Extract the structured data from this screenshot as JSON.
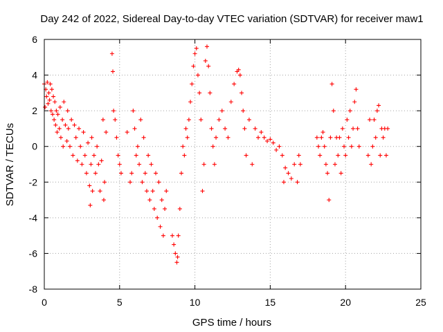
{
  "chart_data": {
    "type": "scatter",
    "title": "Day 242 of 2022, Sidereal Day-to-day VTEC variation (SDTVAR) for receiver maw1",
    "xlabel": "GPS time / hours",
    "ylabel": "SDTVAR / TECUs",
    "xlim": [
      0,
      25
    ],
    "ylim": [
      -8,
      6
    ],
    "xticks": [
      0,
      5,
      10,
      15,
      20,
      25
    ],
    "yticks": [
      -8,
      -6,
      -4,
      -2,
      0,
      2,
      4,
      6
    ],
    "xtick_labels": [
      "0",
      "5",
      "10",
      "15",
      "20",
      "25"
    ],
    "ytick_labels": [
      "-8",
      "-6",
      "-4",
      "-2",
      "0",
      "2",
      "4",
      "6"
    ],
    "grid": true,
    "marker": "+",
    "color": "#ff0000",
    "series": [
      {
        "name": "SDTVAR",
        "points": [
          [
            0.0,
            3.5
          ],
          [
            0.05,
            2.2
          ],
          [
            0.1,
            3.2
          ],
          [
            0.15,
            2.8
          ],
          [
            0.2,
            3.6
          ],
          [
            0.25,
            2.4
          ],
          [
            0.3,
            3.0
          ],
          [
            0.35,
            2.6
          ],
          [
            0.4,
            3.5
          ],
          [
            0.45,
            2.0
          ],
          [
            0.5,
            3.2
          ],
          [
            0.55,
            1.8
          ],
          [
            0.6,
            2.8
          ],
          [
            0.65,
            1.5
          ],
          [
            0.7,
            2.5
          ],
          [
            0.75,
            1.2
          ],
          [
            0.8,
            2.0
          ],
          [
            0.85,
            0.8
          ],
          [
            0.9,
            1.8
          ],
          [
            1.0,
            1.0
          ],
          [
            1.05,
            2.2
          ],
          [
            1.1,
            0.5
          ],
          [
            1.2,
            1.5
          ],
          [
            1.25,
            0.0
          ],
          [
            1.3,
            2.5
          ],
          [
            1.4,
            1.2
          ],
          [
            1.5,
            0.3
          ],
          [
            1.55,
            2.0
          ],
          [
            1.6,
            1.0
          ],
          [
            1.7,
            0.0
          ],
          [
            1.8,
            1.5
          ],
          [
            1.9,
            -0.5
          ],
          [
            2.0,
            1.2
          ],
          [
            2.1,
            0.5
          ],
          [
            2.2,
            -0.8
          ],
          [
            2.3,
            1.0
          ],
          [
            2.4,
            0.0
          ],
          [
            2.5,
            -1.0
          ],
          [
            2.6,
            0.8
          ],
          [
            2.7,
            -0.5
          ],
          [
            2.8,
            -1.5
          ],
          [
            2.9,
            0.2
          ],
          [
            3.0,
            -2.2
          ],
          [
            3.05,
            -3.3
          ],
          [
            3.1,
            -1.0
          ],
          [
            3.15,
            0.5
          ],
          [
            3.2,
            -2.5
          ],
          [
            3.3,
            -0.5
          ],
          [
            3.4,
            -1.5
          ],
          [
            3.5,
            0.0
          ],
          [
            3.6,
            -1.0
          ],
          [
            3.7,
            -2.5
          ],
          [
            3.8,
            -0.8
          ],
          [
            3.9,
            1.5
          ],
          [
            3.95,
            -3.0
          ],
          [
            4.0,
            -2.0
          ],
          [
            4.1,
            0.8
          ],
          [
            4.5,
            5.2
          ],
          [
            4.55,
            4.2
          ],
          [
            4.6,
            2.0
          ],
          [
            4.7,
            1.5
          ],
          [
            4.8,
            0.5
          ],
          [
            4.9,
            -0.5
          ],
          [
            5.0,
            -1.0
          ],
          [
            5.1,
            -1.5
          ],
          [
            5.5,
            0.8
          ],
          [
            5.7,
            -2.0
          ],
          [
            5.8,
            -1.5
          ],
          [
            5.9,
            2.0
          ],
          [
            6.0,
            1.0
          ],
          [
            6.1,
            -0.5
          ],
          [
            6.2,
            0.0
          ],
          [
            6.3,
            -1.0
          ],
          [
            6.4,
            1.5
          ],
          [
            6.5,
            -2.0
          ],
          [
            6.6,
            0.5
          ],
          [
            6.7,
            -1.5
          ],
          [
            6.8,
            -2.5
          ],
          [
            6.9,
            -0.5
          ],
          [
            7.0,
            -3.0
          ],
          [
            7.1,
            -1.0
          ],
          [
            7.2,
            -2.5
          ],
          [
            7.3,
            -3.5
          ],
          [
            7.4,
            -1.5
          ],
          [
            7.5,
            -4.0
          ],
          [
            7.6,
            -2.0
          ],
          [
            7.7,
            -4.5
          ],
          [
            7.8,
            -3.0
          ],
          [
            7.9,
            -5.0
          ],
          [
            8.0,
            -3.5
          ],
          [
            8.1,
            -2.5
          ],
          [
            8.5,
            -5.0
          ],
          [
            8.6,
            -5.5
          ],
          [
            8.7,
            -6.0
          ],
          [
            8.8,
            -6.5
          ],
          [
            8.85,
            -6.2
          ],
          [
            8.9,
            -5.0
          ],
          [
            9.0,
            -3.5
          ],
          [
            9.1,
            -1.5
          ],
          [
            9.2,
            0.0
          ],
          [
            9.3,
            -0.5
          ],
          [
            9.4,
            1.0
          ],
          [
            9.5,
            0.5
          ],
          [
            9.6,
            1.5
          ],
          [
            9.7,
            2.5
          ],
          [
            9.8,
            3.5
          ],
          [
            9.9,
            4.5
          ],
          [
            10.0,
            5.2
          ],
          [
            10.1,
            5.5
          ],
          [
            10.2,
            4.0
          ],
          [
            10.3,
            3.0
          ],
          [
            10.4,
            1.5
          ],
          [
            10.5,
            -2.5
          ],
          [
            10.6,
            -1.0
          ],
          [
            10.7,
            4.8
          ],
          [
            10.8,
            5.6
          ],
          [
            10.9,
            4.5
          ],
          [
            11.0,
            3.0
          ],
          [
            11.1,
            1.0
          ],
          [
            11.2,
            0.0
          ],
          [
            11.3,
            -1.0
          ],
          [
            11.4,
            0.5
          ],
          [
            11.6,
            1.5
          ],
          [
            11.8,
            2.0
          ],
          [
            12.0,
            1.0
          ],
          [
            12.2,
            0.5
          ],
          [
            12.4,
            2.5
          ],
          [
            12.6,
            3.5
          ],
          [
            12.8,
            4.2
          ],
          [
            12.9,
            4.3
          ],
          [
            13.0,
            4.0
          ],
          [
            13.1,
            3.0
          ],
          [
            13.2,
            2.0
          ],
          [
            13.3,
            1.0
          ],
          [
            13.4,
            -0.5
          ],
          [
            13.6,
            1.5
          ],
          [
            13.8,
            -1.0
          ],
          [
            14.0,
            1.0
          ],
          [
            14.2,
            0.5
          ],
          [
            14.4,
            0.8
          ],
          [
            14.6,
            0.5
          ],
          [
            14.8,
            0.3
          ],
          [
            15.0,
            0.4
          ],
          [
            15.2,
            0.2
          ],
          [
            15.4,
            -0.2
          ],
          [
            15.6,
            0.0
          ],
          [
            15.8,
            -0.5
          ],
          [
            16.0,
            -1.2
          ],
          [
            16.2,
            -1.5
          ],
          [
            16.4,
            -1.8
          ],
          [
            16.6,
            -1.0
          ],
          [
            16.8,
            -2.0
          ],
          [
            17.0,
            -1.0
          ],
          [
            16.9,
            -0.5
          ],
          [
            15.9,
            -2.0
          ],
          [
            18.1,
            0.5
          ],
          [
            18.2,
            0.0
          ],
          [
            18.3,
            -0.5
          ],
          [
            18.4,
            0.5
          ],
          [
            18.5,
            0.8
          ],
          [
            18.6,
            0.0
          ],
          [
            18.7,
            -1.0
          ],
          [
            18.8,
            -1.5
          ],
          [
            18.9,
            -3.0
          ],
          [
            19.0,
            0.5
          ],
          [
            19.1,
            3.5
          ],
          [
            19.2,
            2.0
          ],
          [
            19.3,
            -1.0
          ],
          [
            19.4,
            0.5
          ],
          [
            19.5,
            -0.5
          ],
          [
            19.6,
            0.5
          ],
          [
            19.7,
            -1.5
          ],
          [
            19.8,
            1.0
          ],
          [
            19.9,
            0.0
          ],
          [
            20.0,
            -0.5
          ],
          [
            20.1,
            1.5
          ],
          [
            20.2,
            0.5
          ],
          [
            20.3,
            2.0
          ],
          [
            20.4,
            0.0
          ],
          [
            20.5,
            1.0
          ],
          [
            20.6,
            2.5
          ],
          [
            20.7,
            3.2
          ],
          [
            20.8,
            1.0
          ],
          [
            20.9,
            0.0
          ],
          [
            21.5,
            -0.5
          ],
          [
            21.6,
            1.5
          ],
          [
            21.7,
            -1.0
          ],
          [
            21.8,
            0.0
          ],
          [
            21.9,
            1.5
          ],
          [
            22.0,
            0.5
          ],
          [
            22.1,
            2.0
          ],
          [
            22.2,
            2.3
          ],
          [
            22.3,
            -0.5
          ],
          [
            22.4,
            1.0
          ],
          [
            22.5,
            0.5
          ],
          [
            22.6,
            1.0
          ],
          [
            22.7,
            -0.5
          ],
          [
            22.8,
            1.0
          ]
        ]
      }
    ]
  }
}
